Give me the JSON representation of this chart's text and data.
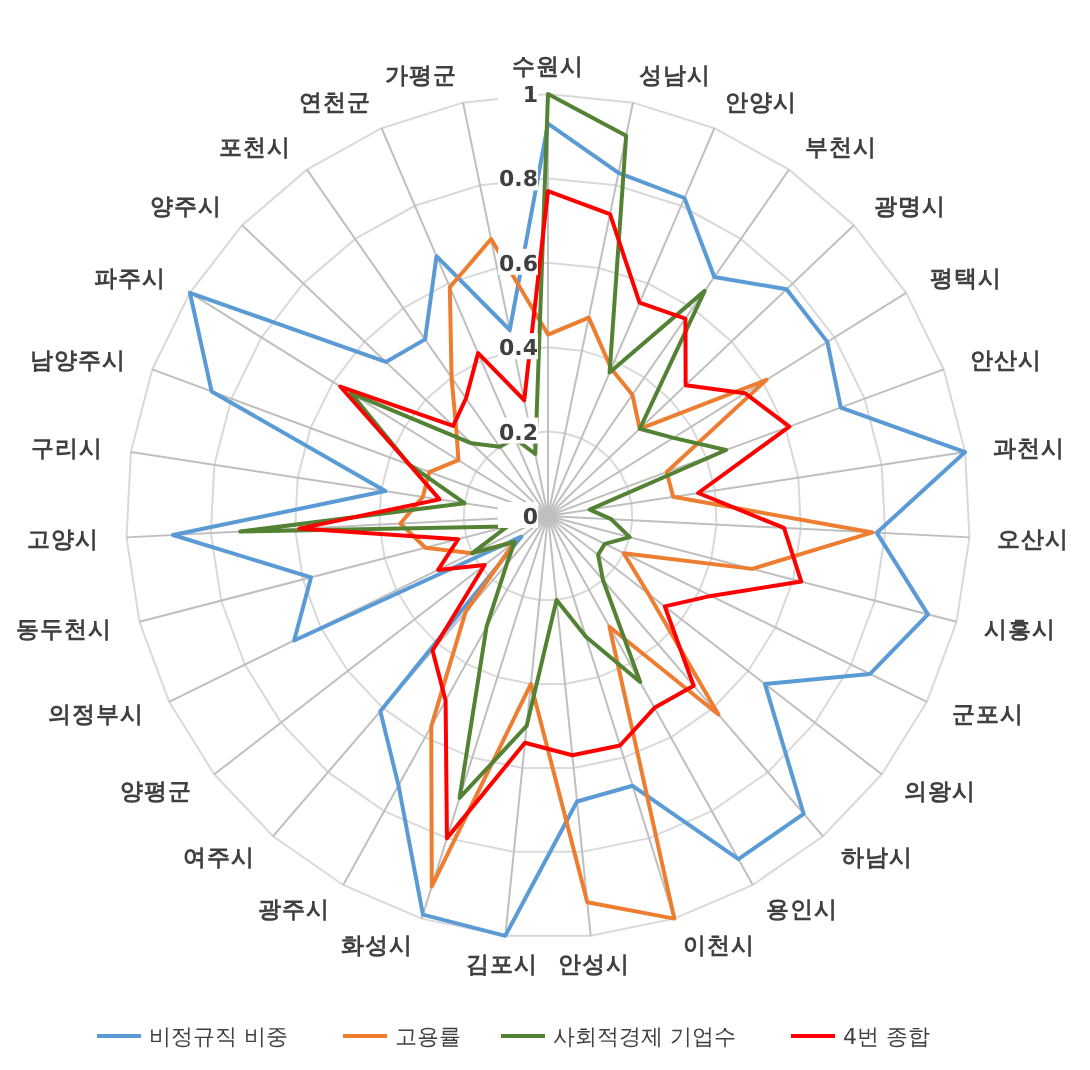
{
  "chart_data": {
    "type": "radar",
    "categories": [
      "수원시",
      "성남시",
      "안양시",
      "부천시",
      "광명시",
      "평택시",
      "안산시",
      "과천시",
      "오산시",
      "시흥시",
      "군포시",
      "의왕시",
      "하남시",
      "용인시",
      "이천시",
      "안성시",
      "김포시",
      "화성시",
      "광주시",
      "여주시",
      "양평군",
      "의정부시",
      "동두천시",
      "고양시",
      "구리시",
      "남양주시",
      "파주시",
      "양주시",
      "포천시",
      "연천군",
      "가평군"
    ],
    "series": [
      {
        "name": "비정규직 비중",
        "color": "#5b9bd5",
        "values": [
          0.93,
          0.83,
          0.82,
          0.69,
          0.78,
          0.78,
          0.74,
          1.0,
          0.78,
          0.93,
          0.85,
          0.65,
          0.93,
          0.93,
          0.67,
          0.68,
          1.0,
          0.99,
          0.73,
          0.61,
          0.08,
          0.67,
          0.58,
          0.89,
          0.39,
          0.85,
          1.0,
          0.53,
          0.51,
          0.67,
          0.45
        ]
      },
      {
        "name": "고용률",
        "color": "#ed7d31",
        "values": [
          0.43,
          0.48,
          0.38,
          0.35,
          0.3,
          0.61,
          0.3,
          0.3,
          0.77,
          0.5,
          0.2,
          0.3,
          0.62,
          0.3,
          1.0,
          0.92,
          0.4,
          0.92,
          0.57,
          0.3,
          0.1,
          0.2,
          0.3,
          0.35,
          0.3,
          0.3,
          0.25,
          0.3,
          0.4,
          0.59,
          0.67
        ]
      },
      {
        "name": "사회적경제 기업수",
        "color": "#548235",
        "values": [
          1.0,
          0.92,
          0.37,
          0.65,
          0.3,
          0.35,
          0.45,
          0.1,
          0.15,
          0.2,
          0.15,
          0.15,
          0.2,
          0.45,
          0.3,
          0.2,
          0.5,
          0.7,
          0.3,
          0.15,
          0.1,
          0.2,
          0.1,
          0.73,
          0.2,
          0.35,
          0.55,
          0.25,
          0.2,
          0.2,
          0.15
        ]
      },
      {
        "name": "4번 종합",
        "color": "#ff0000",
        "values": [
          0.77,
          0.73,
          0.55,
          0.57,
          0.45,
          0.55,
          0.61,
          0.36,
          0.56,
          0.62,
          0.43,
          0.35,
          0.53,
          0.52,
          0.57,
          0.57,
          0.54,
          0.8,
          0.5,
          0.42,
          0.19,
          0.29,
          0.22,
          0.59,
          0.26,
          0.35,
          0.58,
          0.31,
          0.34,
          0.42,
          0.28
        ]
      }
    ],
    "ylim": [
      0,
      1
    ],
    "yticks": [
      0,
      0.2,
      0.4,
      0.6,
      0.8,
      1
    ],
    "grid": true,
    "legend": "bottom"
  }
}
